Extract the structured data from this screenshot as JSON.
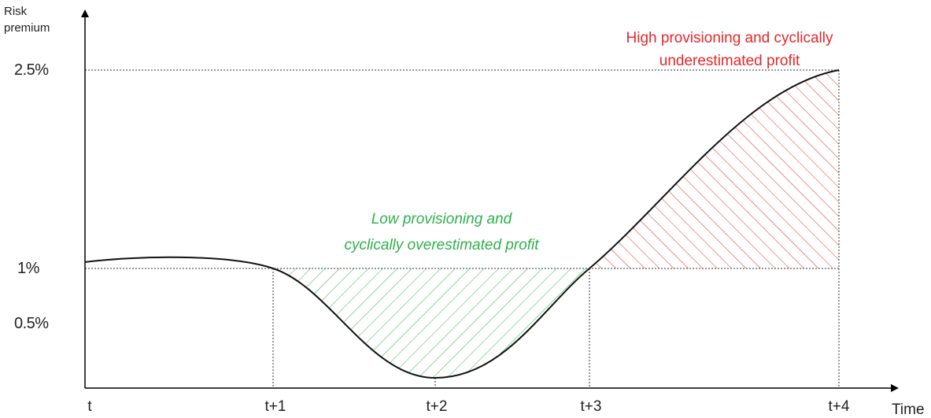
{
  "y_axis": {
    "label_lines": [
      "Risk",
      "premium"
    ],
    "labels": [
      "2.5%",
      "1%",
      "0.5%"
    ]
  },
  "x_axis": {
    "labels": [
      "t",
      "t+1",
      "t+2",
      "t+3",
      "t+4"
    ],
    "title": "Time"
  },
  "annotations": [
    {
      "lines": [
        "High provisioning and cyclically",
        "underestimated profit"
      ]
    },
    {
      "lines": [
        "Low provisioning and",
        "cyclically overestimated profit"
      ]
    }
  ]
}
